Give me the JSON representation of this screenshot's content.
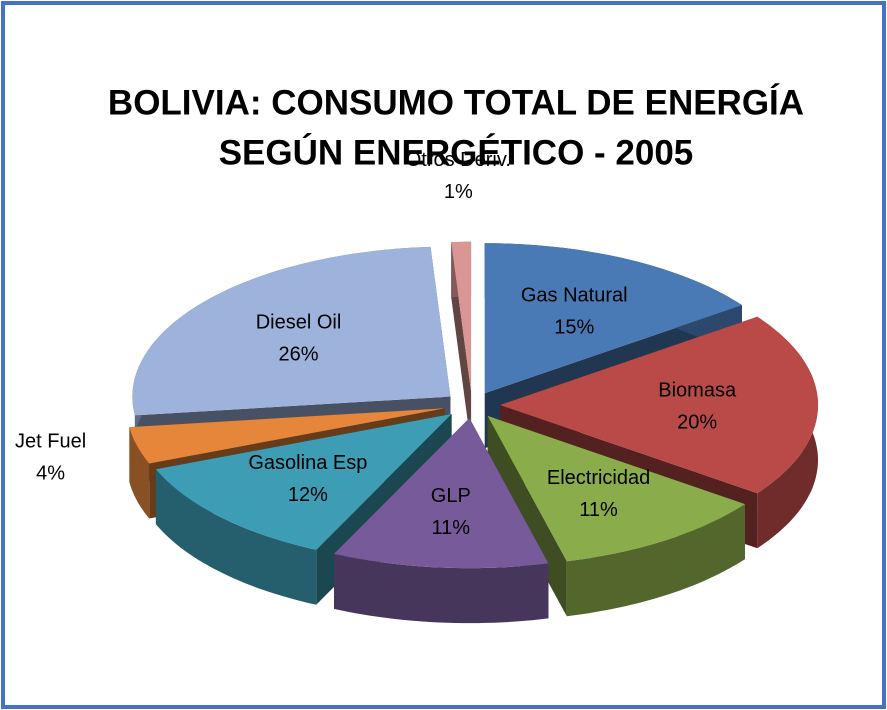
{
  "chart_data": {
    "type": "pie",
    "title": "BOLIVIA: CONSUMO TOTAL DE ENERGÍA",
    "subtitle": "SEGÚN ENERGÉTICO  - 2005",
    "categories": [
      "Gas Natural",
      "Biomasa",
      "Electricidad",
      "GLP",
      "Gasolina Esp",
      "Jet Fuel",
      "Diesel Oil",
      "Otros Deriv."
    ],
    "values": [
      15,
      20,
      11,
      11,
      12,
      4,
      26,
      1
    ],
    "value_labels": [
      "15%",
      "20%",
      "11%",
      "11%",
      "12%",
      "4%",
      "26%",
      "1%"
    ],
    "colors": [
      "#4a7ab5",
      "#b94a48",
      "#8aac4b",
      "#765a9a",
      "#3d9db4",
      "#e5863b",
      "#9db3db",
      "#d99694"
    ]
  }
}
